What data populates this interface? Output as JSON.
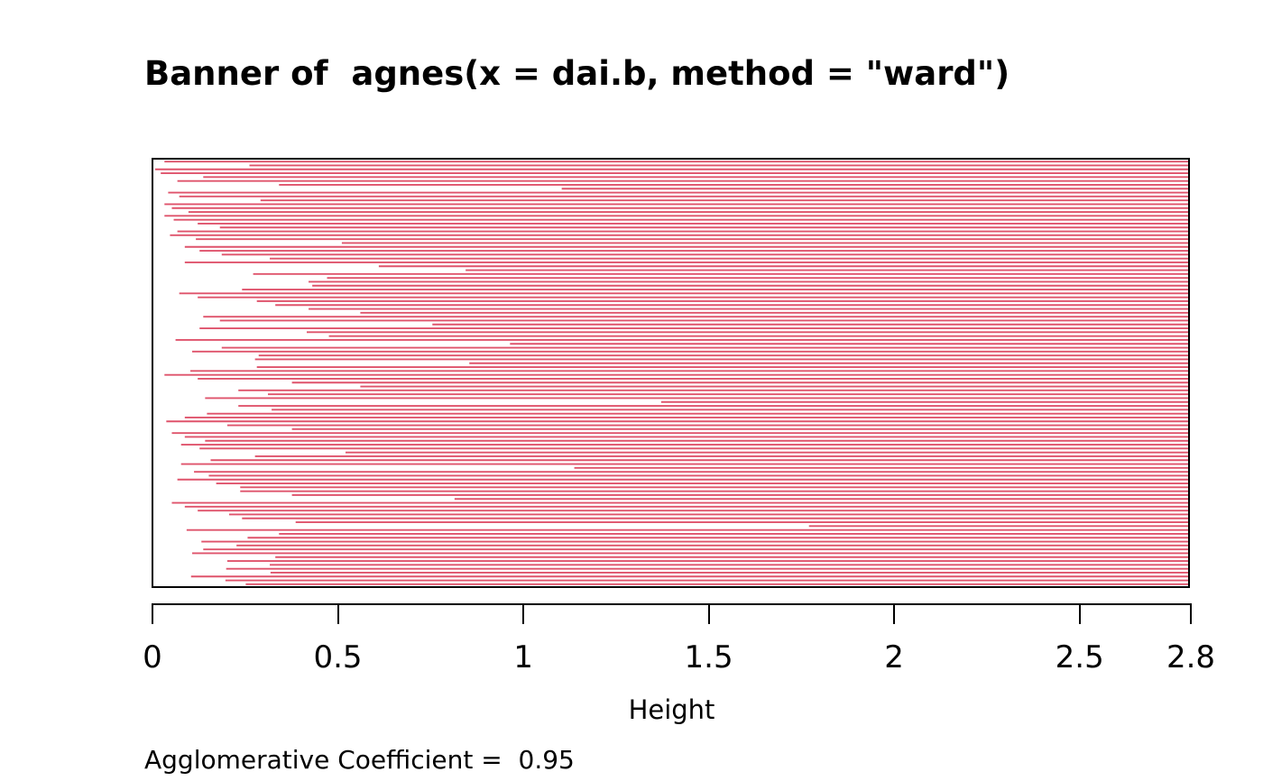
{
  "title": "Banner of  agnes(x = dai.b, method = \"ward\")",
  "xlabel": "Height",
  "annotation": "Agglomerative Coefficient =  0.95",
  "chart_data": {
    "type": "bar",
    "subtype": "banner-plot-agnes",
    "title": "Banner of  agnes(x = dai.b, method = \"ward\")",
    "xlabel": "Height",
    "annotation_text": "Agglomerative Coefficient =  0.95",
    "agglomerative_coefficient": 0.95,
    "xlim": [
      0,
      2.8
    ],
    "x_ticks": [
      0,
      0.5,
      1,
      1.5,
      2,
      2.5,
      2.8
    ],
    "x_tick_labels": [
      "0",
      "0.5",
      "1",
      "1.5",
      "2",
      "2.5",
      "2.8"
    ],
    "bar_color": "#DF536B",
    "background_color": "#ffffff",
    "box_color": "#000000",
    "grid": false,
    "legend": false,
    "bar_extends_to": 2.8,
    "n_bars": 110,
    "merge_heights": [
      0.03,
      0.26,
      0.005,
      0.02,
      0.135,
      0.065,
      0.34,
      1.105,
      0.04,
      0.07,
      0.29,
      0.03,
      0.05,
      0.095,
      0.03,
      0.055,
      0.12,
      0.18,
      0.065,
      0.045,
      0.115,
      0.51,
      0.085,
      0.125,
      0.185,
      0.315,
      0.085,
      0.61,
      0.845,
      0.27,
      0.47,
      0.42,
      0.43,
      0.24,
      0.07,
      0.12,
      0.28,
      0.33,
      0.42,
      0.56,
      0.135,
      0.18,
      0.755,
      0.125,
      0.415,
      0.475,
      0.06,
      0.965,
      0.185,
      0.105,
      0.285,
      0.275,
      0.855,
      0.28,
      0.1,
      0.03,
      0.12,
      0.375,
      0.56,
      0.23,
      0.31,
      0.14,
      1.374,
      0.23,
      0.32,
      0.145,
      0.085,
      0.035,
      0.2,
      0.375,
      0.05,
      0.085,
      0.14,
      0.075,
      0.125,
      0.52,
      0.275,
      0.155,
      0.075,
      1.139,
      0.11,
      0.15,
      0.065,
      0.17,
      0.235,
      0.235,
      0.375,
      0.815,
      0.05,
      0.085,
      0.12,
      0.205,
      0.24,
      0.385,
      1.774,
      0.09,
      0.34,
      0.255,
      0.13,
      0.225,
      0.135,
      0.105,
      0.33,
      0.2,
      0.315,
      0.197,
      0.317,
      0.102,
      0.195,
      0.25
    ]
  }
}
